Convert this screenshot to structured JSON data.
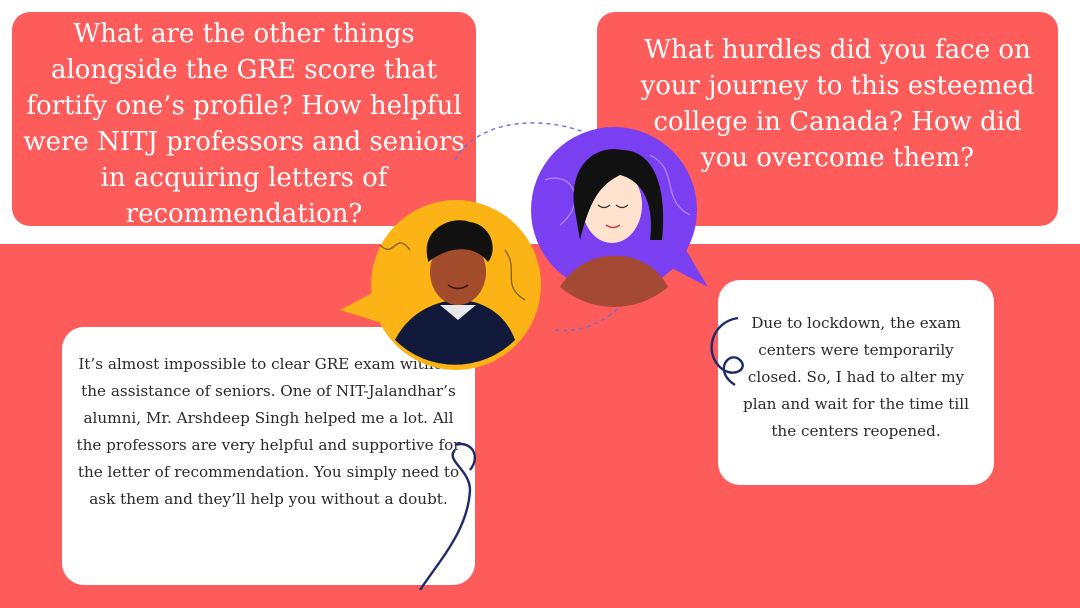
{
  "questions": {
    "left": "What are the other things alongside the GRE score that fortify one’s profile? How helpful were NITJ professors and seniors in acquiring letters of recommendation?",
    "right": "What hurdles did you face on your journey to this esteemed college in Canada? How did you overcome them?"
  },
  "answers": {
    "left": "It’s almost impossible to clear GRE exam without the assistance of seniors. One of NIT-Jalandhar’s alumni, Mr. Arshdeep Singh helped me a lot. All the professors are very helpful and supportive for the letter of recommendation. You simply need to ask them and they’ll help you without a doubt.",
    "right": "Due to lockdown, the exam centers were temporarily closed. So, I had to alter my plan and wait for the time till the centers reopened."
  },
  "colors": {
    "accent_red": "#fe5b5b",
    "yellow": "#fbb315",
    "purple": "#7b3ff2",
    "navy": "#1f2a6b"
  },
  "icons": {
    "male_avatar": "man-speech-bubble-avatar",
    "female_avatar": "woman-speech-bubble-avatar"
  }
}
